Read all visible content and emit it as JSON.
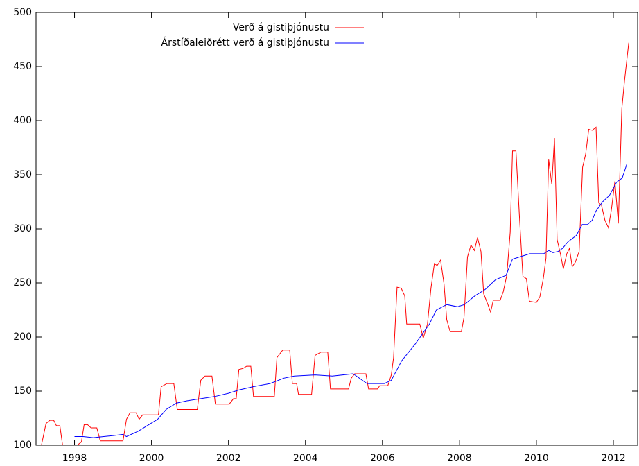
{
  "chart_data": {
    "type": "line",
    "xlim": [
      1997,
      2012.63
    ],
    "ylim": [
      100,
      500
    ],
    "xticks": [
      1998,
      2000,
      2002,
      2004,
      2006,
      2008,
      2010,
      2012
    ],
    "yticks": [
      100,
      150,
      200,
      250,
      300,
      350,
      400,
      450,
      500
    ],
    "legend": "top-right",
    "series": [
      {
        "name": "Verð á gistiþjónustu",
        "color": "#ff0000",
        "x": [
          1997.14,
          1997.26,
          1997.36,
          1997.46,
          1997.53,
          1997.62,
          1997.69,
          1998.07,
          1998.18,
          1998.25,
          1998.34,
          1998.43,
          1998.58,
          1998.67,
          1999.26,
          1999.35,
          1999.44,
          1999.6,
          1999.68,
          1999.77,
          2000.18,
          2000.25,
          2000.4,
          2000.58,
          2000.67,
          2001.19,
          2001.28,
          2001.39,
          2001.57,
          2001.66,
          2002.02,
          2002.13,
          2002.2,
          2002.27,
          2002.38,
          2002.47,
          2002.58,
          2002.65,
          2003.19,
          2003.26,
          2003.41,
          2003.59,
          2003.66,
          2003.77,
          2003.82,
          2004.16,
          2004.25,
          2004.4,
          2004.58,
          2004.65,
          2005.12,
          2005.19,
          2005.28,
          2005.57,
          2005.64,
          2005.87,
          2005.93,
          2006.14,
          2006.23,
          2006.29,
          2006.38,
          2006.49,
          2006.58,
          2006.63,
          2006.97,
          2007.06,
          2007.17,
          2007.26,
          2007.35,
          2007.42,
          2007.51,
          2007.6,
          2007.67,
          2007.76,
          2008.05,
          2008.12,
          2008.21,
          2008.3,
          2008.39,
          2008.47,
          2008.56,
          2008.63,
          2008.74,
          2008.81,
          2008.88,
          2009.06,
          2009.14,
          2009.23,
          2009.32,
          2009.38,
          2009.47,
          2009.56,
          2009.65,
          2009.74,
          2009.82,
          2010.0,
          2010.09,
          2010.18,
          2010.25,
          2010.32,
          2010.4,
          2010.47,
          2010.54,
          2010.63,
          2010.7,
          2010.79,
          2010.86,
          2010.93,
          2011.01,
          2011.11,
          2011.2,
          2011.28,
          2011.36,
          2011.45,
          2011.55,
          2011.62,
          2011.69,
          2011.78,
          2011.87,
          2011.95,
          2012.04,
          2012.13,
          2012.22,
          2012.29,
          2012.4
        ],
        "values": [
          100,
          120,
          123,
          123,
          118,
          118,
          100,
          100,
          103,
          119,
          119,
          116,
          116,
          104,
          104,
          124,
          130,
          130,
          124,
          128,
          128,
          154,
          157,
          157,
          133,
          133,
          160,
          164,
          164,
          138,
          138,
          143,
          143,
          170,
          171,
          173,
          173,
          145,
          145,
          181,
          188,
          188,
          157,
          157,
          147,
          147,
          183,
          186,
          186,
          152,
          152,
          162,
          166,
          166,
          152,
          152,
          155,
          155,
          165,
          181,
          246,
          245,
          238,
          212,
          212,
          199,
          212,
          245,
          268,
          266,
          271,
          249,
          216,
          205,
          205,
          218,
          274,
          285,
          280,
          292,
          279,
          240,
          230,
          223,
          234,
          234,
          242,
          257,
          297,
          372,
          372,
          311,
          256,
          254,
          233,
          232,
          237,
          254,
          273,
          364,
          341,
          384,
          290,
          276,
          263,
          277,
          282,
          265,
          269,
          279,
          357,
          369,
          392,
          391,
          394,
          324,
          322,
          308,
          301,
          318,
          344,
          305,
          411,
          437,
          472
        ]
      },
      {
        "name": "Árstíðaleiðrétt verð á gistiþjónustu",
        "color": "#0000ff",
        "x": [
          1998.0,
          1998.22,
          1998.49,
          1998.76,
          1999.03,
          1999.26,
          1999.35,
          1999.66,
          1999.93,
          2000.16,
          2000.38,
          2000.65,
          2000.92,
          2001.28,
          2001.64,
          2002.0,
          2002.27,
          2002.63,
          2003.08,
          2003.44,
          2003.71,
          2004.25,
          2004.7,
          2005.24,
          2005.6,
          2006.05,
          2006.23,
          2006.5,
          2006.86,
          2007.22,
          2007.4,
          2007.67,
          2007.95,
          2008.13,
          2008.4,
          2008.67,
          2008.94,
          2009.21,
          2009.38,
          2009.65,
          2009.83,
          2010.19,
          2010.32,
          2010.43,
          2010.56,
          2010.68,
          2010.82,
          2011.04,
          2011.19,
          2011.33,
          2011.45,
          2011.54,
          2011.72,
          2011.9,
          2012.08,
          2012.23,
          2012.35
        ],
        "values": [
          108,
          108,
          107,
          108,
          109,
          110,
          108,
          113,
          119,
          124,
          133,
          139,
          141,
          143,
          145,
          148,
          151,
          154,
          157,
          162,
          164,
          165,
          164,
          166,
          157,
          157,
          160,
          178,
          194,
          212,
          225,
          230,
          228,
          230,
          238,
          244,
          253,
          257,
          272,
          275,
          277,
          277,
          280,
          278,
          279,
          282,
          288,
          294,
          304,
          304,
          308,
          316,
          325,
          331,
          343,
          347,
          360
        ]
      }
    ]
  }
}
